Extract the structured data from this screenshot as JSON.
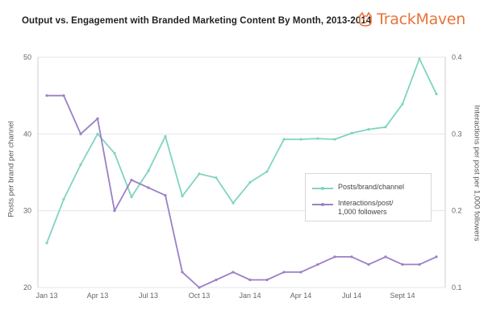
{
  "chart_data": {
    "type": "line",
    "title": "Output vs. Engagement with Branded Marketing Content By Month, 2013-2014",
    "ylabel": "Posts per brand per channel",
    "y2label": "Interactions per post per 1,000 followers",
    "x_tick_labels": [
      "Jan 13",
      "Apr 13",
      "Jul 13",
      "Oct 13",
      "Jan 14",
      "Apr 14",
      "Jul 14",
      "Sept 14"
    ],
    "x_tick_indices": [
      0,
      3,
      6,
      9,
      12,
      15,
      18,
      21
    ],
    "ylim": [
      20,
      50
    ],
    "y_ticks": [
      "20",
      "30",
      "40",
      "50"
    ],
    "y2lim": [
      0.1,
      0.4
    ],
    "y2_ticks": [
      "0.1",
      "0.2",
      "0.3",
      "0.4"
    ],
    "grid": "horizontal",
    "legend_position": "center-right",
    "series": [
      {
        "name": "Posts/brand/channel",
        "axis": "left",
        "color": "#7fd4c1",
        "values": [
          25.8,
          31.5,
          36.0,
          40.0,
          37.5,
          31.8,
          35.2,
          39.7,
          31.9,
          34.8,
          34.3,
          31.0,
          33.7,
          35.1,
          39.3,
          39.3,
          39.4,
          39.3,
          40.1,
          40.6,
          40.9,
          43.9,
          49.8,
          45.2
        ]
      },
      {
        "name": "Interactions/post/ 1,000 followers",
        "axis": "right",
        "color": "#9b80c6",
        "values": [
          0.35,
          0.35,
          0.3,
          0.32,
          0.2,
          0.24,
          0.23,
          0.22,
          0.12,
          0.1,
          0.11,
          0.12,
          0.11,
          0.11,
          0.12,
          0.12,
          0.13,
          0.14,
          0.14,
          0.13,
          0.14,
          0.13,
          0.13,
          0.14
        ]
      }
    ]
  },
  "header": {
    "title": "Output vs. Engagement with Branded Marketing Content By Month, 2013-2014",
    "brand": "TrackMaven",
    "brand_icon": "dog-logo-icon",
    "brand_color": "#e8743b"
  },
  "legend": {
    "series1_label": "Posts/brand/channel",
    "series2_line1": "Interactions/post/",
    "series2_line2": "1,000 followers"
  }
}
